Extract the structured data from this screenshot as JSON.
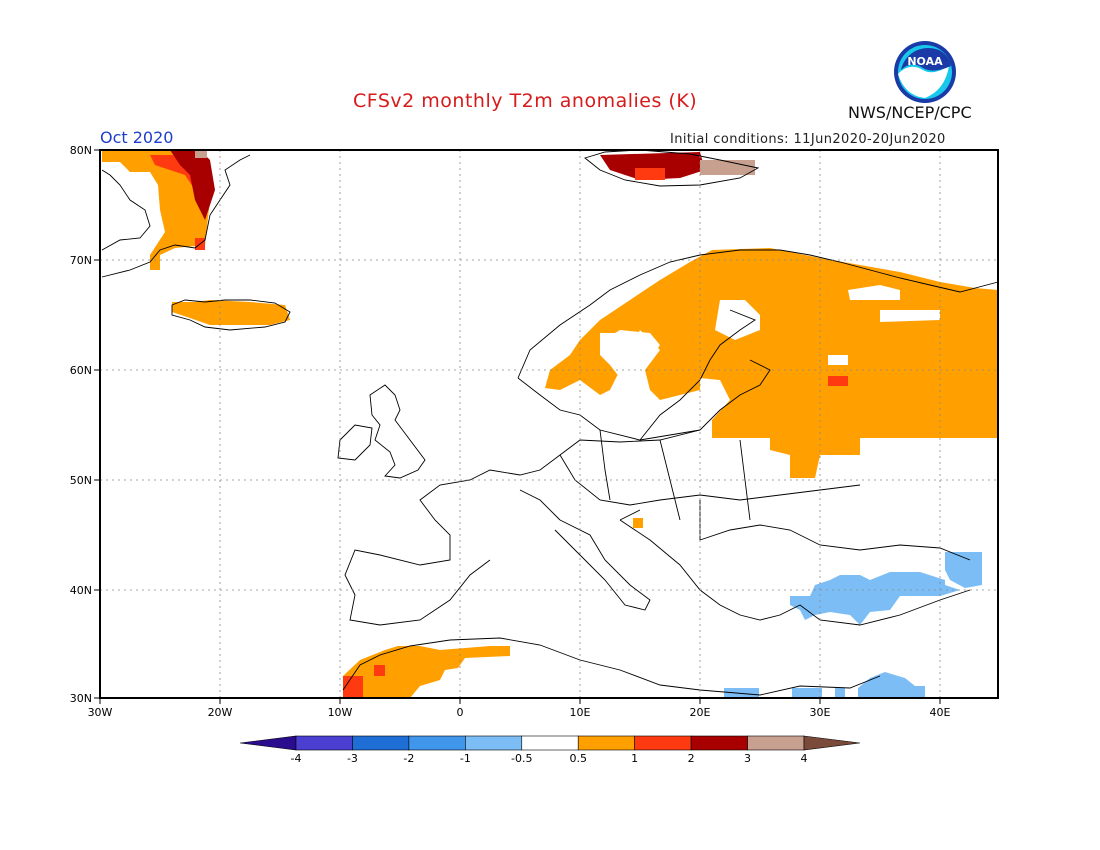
{
  "header": {
    "title": "CFSv2 monthly T2m anomalies (K)",
    "agency": "NWS/NCEP/CPC",
    "month": "Oct 2020",
    "initial_conditions": "Initial conditions: 11Jun2020-20Jun2020",
    "logo_text": "NOAA"
  },
  "map": {
    "lon_ticks": [
      "30W",
      "20W",
      "10W",
      "0",
      "10E",
      "20E",
      "30E",
      "40E"
    ],
    "lat_ticks": [
      "80N",
      "70N",
      "60N",
      "50N",
      "40N",
      "30N"
    ]
  },
  "colorbar": {
    "labels": [
      "-4",
      "-3",
      "-2",
      "-1",
      "-0.5",
      "0.5",
      "1",
      "2",
      "3",
      "4"
    ],
    "colors": [
      "#2a0d8f",
      "#4a3fd1",
      "#1f6ed6",
      "#3f96ea",
      "#7dbdf5",
      "#ffffff",
      "#ff9f00",
      "#ff3a10",
      "#a80000",
      "#c8a090",
      "#7a4a3a"
    ]
  }
}
